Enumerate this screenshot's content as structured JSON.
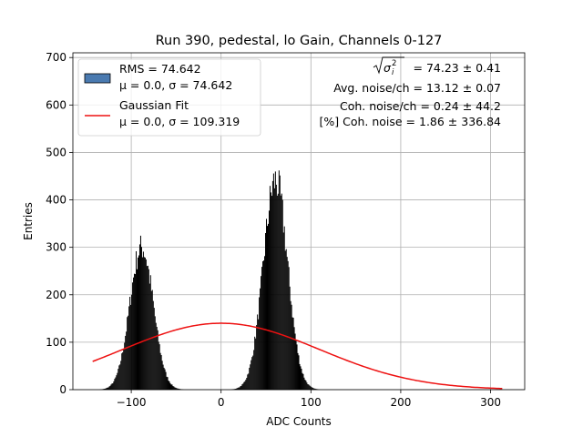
{
  "chart_data": {
    "type": "bar",
    "title": "Run 390, pedestal, lo Gain, Channels 0-127",
    "xlabel": "ADC Counts",
    "ylabel": "Entries",
    "xlim": [
      -165,
      338
    ],
    "ylim": [
      0,
      710
    ],
    "xticks": [
      -100,
      0,
      100,
      200,
      300
    ],
    "xtick_labels": [
      "−100",
      "0",
      "100",
      "200",
      "300"
    ],
    "yticks": [
      0,
      100,
      200,
      300,
      400,
      500,
      600,
      700
    ],
    "ytick_labels": [
      "0",
      "100",
      "200",
      "300",
      "400",
      "500",
      "600",
      "700"
    ],
    "grid": true,
    "legend_position": "upper-left",
    "legend": [
      {
        "line1": "RMS = 74.642",
        "line2": "μ = 0.0, σ = 74.642",
        "kind": "patch",
        "color": "#4a7ab0"
      },
      {
        "line1": "Gaussian Fit",
        "line2": "μ = 0.0, σ = 109.319",
        "kind": "line",
        "color": "#ee1111"
      }
    ],
    "annotations": [
      {
        "radical": "σ",
        "sub": "i",
        "sup": "2",
        "text": " = 74.23 ± 0.41"
      },
      {
        "text": "Avg. noise/ch = 13.12 ± 0.07"
      },
      {
        "text": "Coh. noise/ch = 0.24 ± 44.2"
      },
      {
        "text": "[%] Coh. noise = 1.86 ± 336.84"
      }
    ],
    "histogram": {
      "name": "RMS = 74.642",
      "color": "#000000",
      "bin_width": 1,
      "peaks": [
        {
          "mean": -89,
          "sigma": 13,
          "amplitude": 300,
          "range": [
            -143,
            -35
          ]
        },
        {
          "mean": 60,
          "sigma": 13.5,
          "amplitude": 440,
          "range": [
            7,
            128
          ]
        }
      ],
      "noise_amplitude": 0.2
    },
    "fit": {
      "name": "Gaussian Fit",
      "color": "#ee1111",
      "mu": 0.0,
      "sigma": 109.319,
      "amplitude": 140,
      "range": [
        -143,
        314
      ]
    }
  }
}
